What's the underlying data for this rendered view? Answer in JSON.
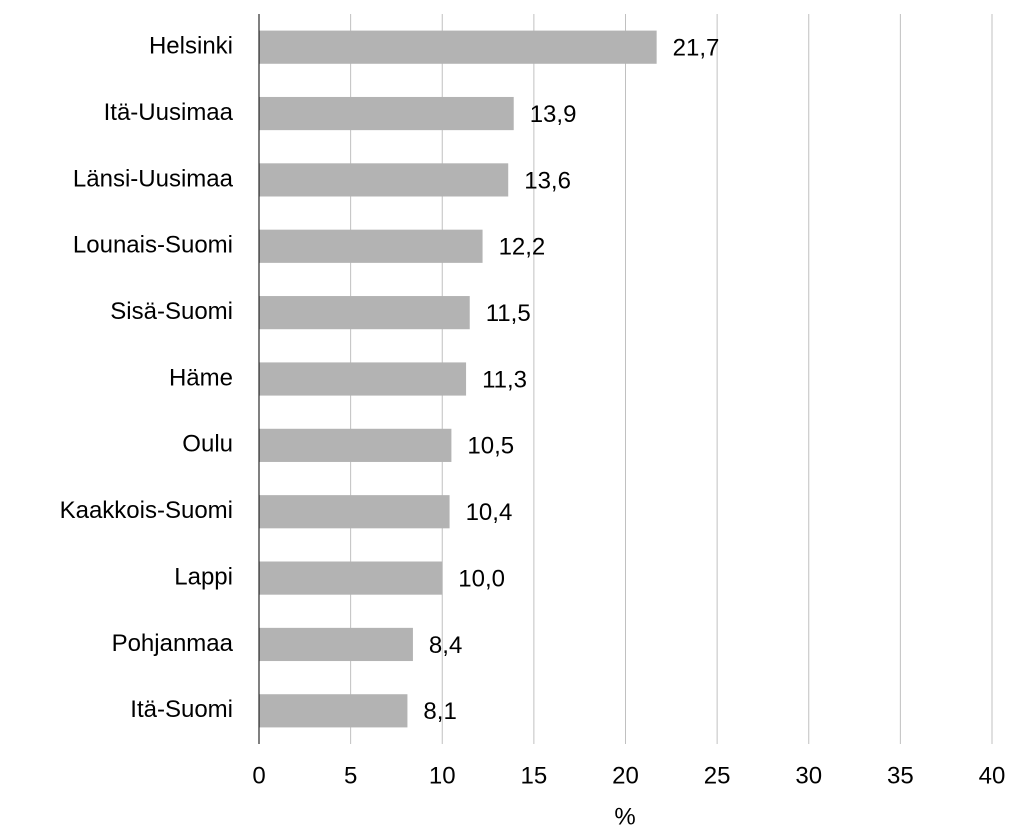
{
  "chart_data": {
    "type": "barh",
    "categories": [
      "Helsinki",
      "Itä-Uusimaa",
      "Länsi-Uusimaa",
      "Lounais-Suomi",
      "Sisä-Suomi",
      "Häme",
      "Oulu",
      "Kaakkois-Suomi",
      "Lappi",
      "Pohjanmaa",
      "Itä-Suomi"
    ],
    "values": [
      21.7,
      13.9,
      13.6,
      12.2,
      11.5,
      11.3,
      10.5,
      10.4,
      10.0,
      8.4,
      8.1
    ],
    "value_labels": [
      "21,7",
      "13,9",
      "13,6",
      "12,2",
      "11,5",
      "11,3",
      "10,5",
      "10,4",
      "10,0",
      "8,4",
      "8,1"
    ],
    "color": "#b3b3b3",
    "xlim": [
      0,
      40
    ],
    "xticks": [
      0,
      5,
      10,
      15,
      20,
      25,
      30,
      35,
      40
    ],
    "xlabel": "%",
    "grid": true
  }
}
